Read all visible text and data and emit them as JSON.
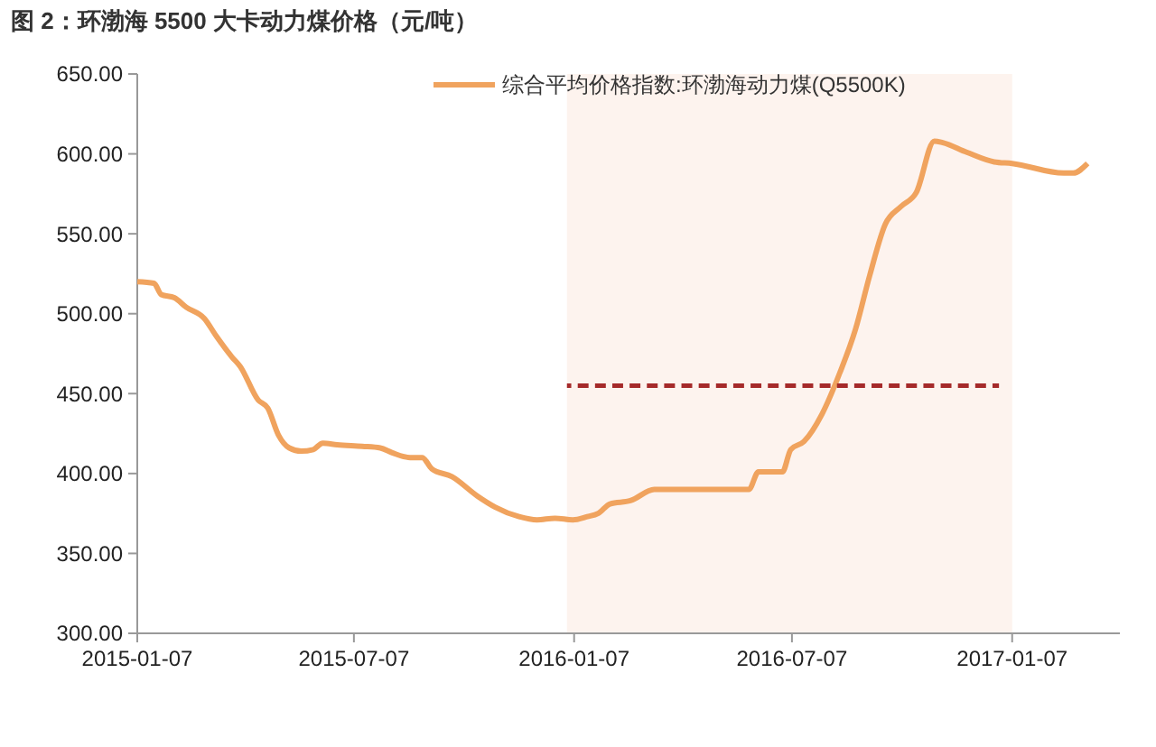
{
  "chart_data": {
    "type": "line",
    "title": "图 2：环渤海 5500 大卡动力煤价格（元/吨）",
    "series": [
      {
        "name": "综合平均价格指数:环渤海动力煤(Q5500K)",
        "color": "#f0a35e",
        "x": [
          "2015-01-07",
          "2015-01-21",
          "2015-01-27",
          "2015-02-07",
          "2015-02-17",
          "2015-03-04",
          "2015-03-14",
          "2015-03-27",
          "2015-04-03",
          "2015-04-18",
          "2015-04-26",
          "2015-05-05",
          "2015-05-14",
          "2015-05-24",
          "2015-06-03",
          "2015-06-11",
          "2015-06-23",
          "2015-07-14",
          "2015-07-29",
          "2015-08-08",
          "2015-08-23",
          "2015-09-02",
          "2015-09-10",
          "2015-09-27",
          "2015-10-18",
          "2015-11-02",
          "2015-11-22",
          "2015-12-07",
          "2015-12-22",
          "2016-01-06",
          "2016-01-18",
          "2016-01-27",
          "2016-02-06",
          "2016-02-23",
          "2016-03-14",
          "2016-06-01",
          "2016-06-09",
          "2016-06-29",
          "2016-07-06",
          "2016-07-17",
          "2016-08-01",
          "2016-08-16",
          "2016-08-29",
          "2016-09-10",
          "2016-09-23",
          "2016-10-06",
          "2016-10-19",
          "2016-11-03",
          "2016-11-10",
          "2016-11-30",
          "2016-12-23",
          "2017-01-07",
          "2017-02-19",
          "2017-02-27",
          "2017-03-11"
        ],
        "values": [
          520,
          519,
          512,
          510,
          504,
          497,
          486,
          473,
          467,
          446,
          441,
          424,
          416,
          414,
          415,
          419,
          418,
          417,
          416,
          413,
          410,
          410,
          403,
          398,
          386,
          379,
          373,
          371,
          372,
          371,
          373,
          375,
          381,
          383,
          390,
          390,
          401,
          401,
          415,
          420,
          437,
          463,
          490,
          524,
          556,
          567,
          576,
          608,
          607,
          601,
          595,
          594,
          588,
          588,
          594
        ]
      },
      {
        "color": "#a52a2a",
        "type": "line",
        "line_style": "dashed",
        "x": [
          "2016-01-01",
          "2016-12-27"
        ],
        "values": [
          455,
          455
        ]
      }
    ],
    "xlim": [
      "2015-01-07",
      "2017-04-07"
    ],
    "xticks": [
      "2015-01-07",
      "2015-07-07",
      "2016-01-07",
      "2016-07-07",
      "2017-01-07"
    ],
    "ylim": [
      300,
      650
    ],
    "yticks": [
      {
        "value": 300,
        "label": "300.00"
      },
      {
        "value": 350,
        "label": "350.00"
      },
      {
        "value": 400,
        "label": "400.00"
      },
      {
        "value": 450,
        "label": "450.00"
      },
      {
        "value": 500,
        "label": "500.00"
      },
      {
        "value": 550,
        "label": "550.00"
      },
      {
        "value": 600,
        "label": "600.00"
      },
      {
        "value": 650,
        "label": "650.00"
      }
    ],
    "bands": [
      {
        "axis": "x",
        "from": "2016-01-01",
        "to": "2017-01-07",
        "color": "#fdf3ee"
      }
    ],
    "legend": "top",
    "grid": false,
    "marker": "none",
    "line_style": "solid"
  }
}
